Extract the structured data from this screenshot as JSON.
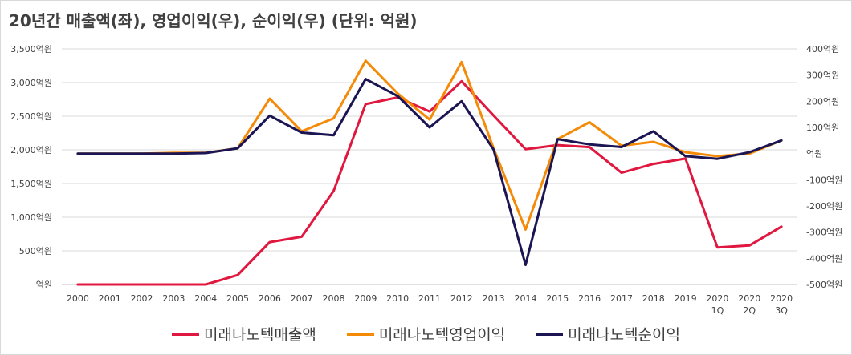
{
  "chart_data": {
    "type": "line",
    "title": "20년간 매출액(좌), 영업이익(우), 순이익(우) (단위: 억원)",
    "categories": [
      [
        "2000"
      ],
      [
        "2001"
      ],
      [
        "2002"
      ],
      [
        "2003"
      ],
      [
        "2004"
      ],
      [
        "2005"
      ],
      [
        "2006"
      ],
      [
        "2007"
      ],
      [
        "2008"
      ],
      [
        "2009"
      ],
      [
        "2010"
      ],
      [
        "2011"
      ],
      [
        "2012"
      ],
      [
        "2013"
      ],
      [
        "2014"
      ],
      [
        "2015"
      ],
      [
        "2016"
      ],
      [
        "2017"
      ],
      [
        "2018"
      ],
      [
        "2019"
      ],
      [
        "2020",
        "1Q"
      ],
      [
        "2020",
        "2Q"
      ],
      [
        "2020",
        "3Q"
      ]
    ],
    "left_axis": {
      "ylim": [
        0,
        3500
      ],
      "ticks": [
        "억원",
        "500억원",
        "1,000억원",
        "1,500억원",
        "2,000억원",
        "2,500억원",
        "3,000억원",
        "3,500억원"
      ]
    },
    "right_axis": {
      "ylim": [
        -500,
        400
      ],
      "ticks": [
        "-500억원",
        "-400억원",
        "-300억원",
        "-200억원",
        "-100억원",
        "억원",
        "100억원",
        "200억원",
        "300억원",
        "400억원"
      ]
    },
    "series": [
      {
        "name": "미래나노텍매출액",
        "axis": "left",
        "color": "#e0173f",
        "values": [
          0,
          0,
          0,
          0,
          0,
          140,
          630,
          710,
          1390,
          2680,
          2780,
          2570,
          3020,
          2510,
          2010,
          2070,
          2040,
          1660,
          1790,
          1870,
          550,
          580,
          860
        ]
      },
      {
        "name": "미래나노텍영업이익",
        "axis": "right",
        "color": "#f58a07",
        "values": [
          0,
          0,
          0,
          3,
          3,
          20,
          210,
          85,
          135,
          355,
          230,
          130,
          350,
          20,
          -290,
          55,
          120,
          30,
          45,
          5,
          -10,
          0,
          50
        ]
      },
      {
        "name": "미래나노텍순이익",
        "axis": "right",
        "color": "#1b1553",
        "values": [
          0,
          0,
          0,
          0,
          2,
          20,
          145,
          80,
          70,
          285,
          220,
          100,
          200,
          15,
          -425,
          55,
          35,
          25,
          85,
          -10,
          -20,
          5,
          50
        ]
      }
    ]
  }
}
